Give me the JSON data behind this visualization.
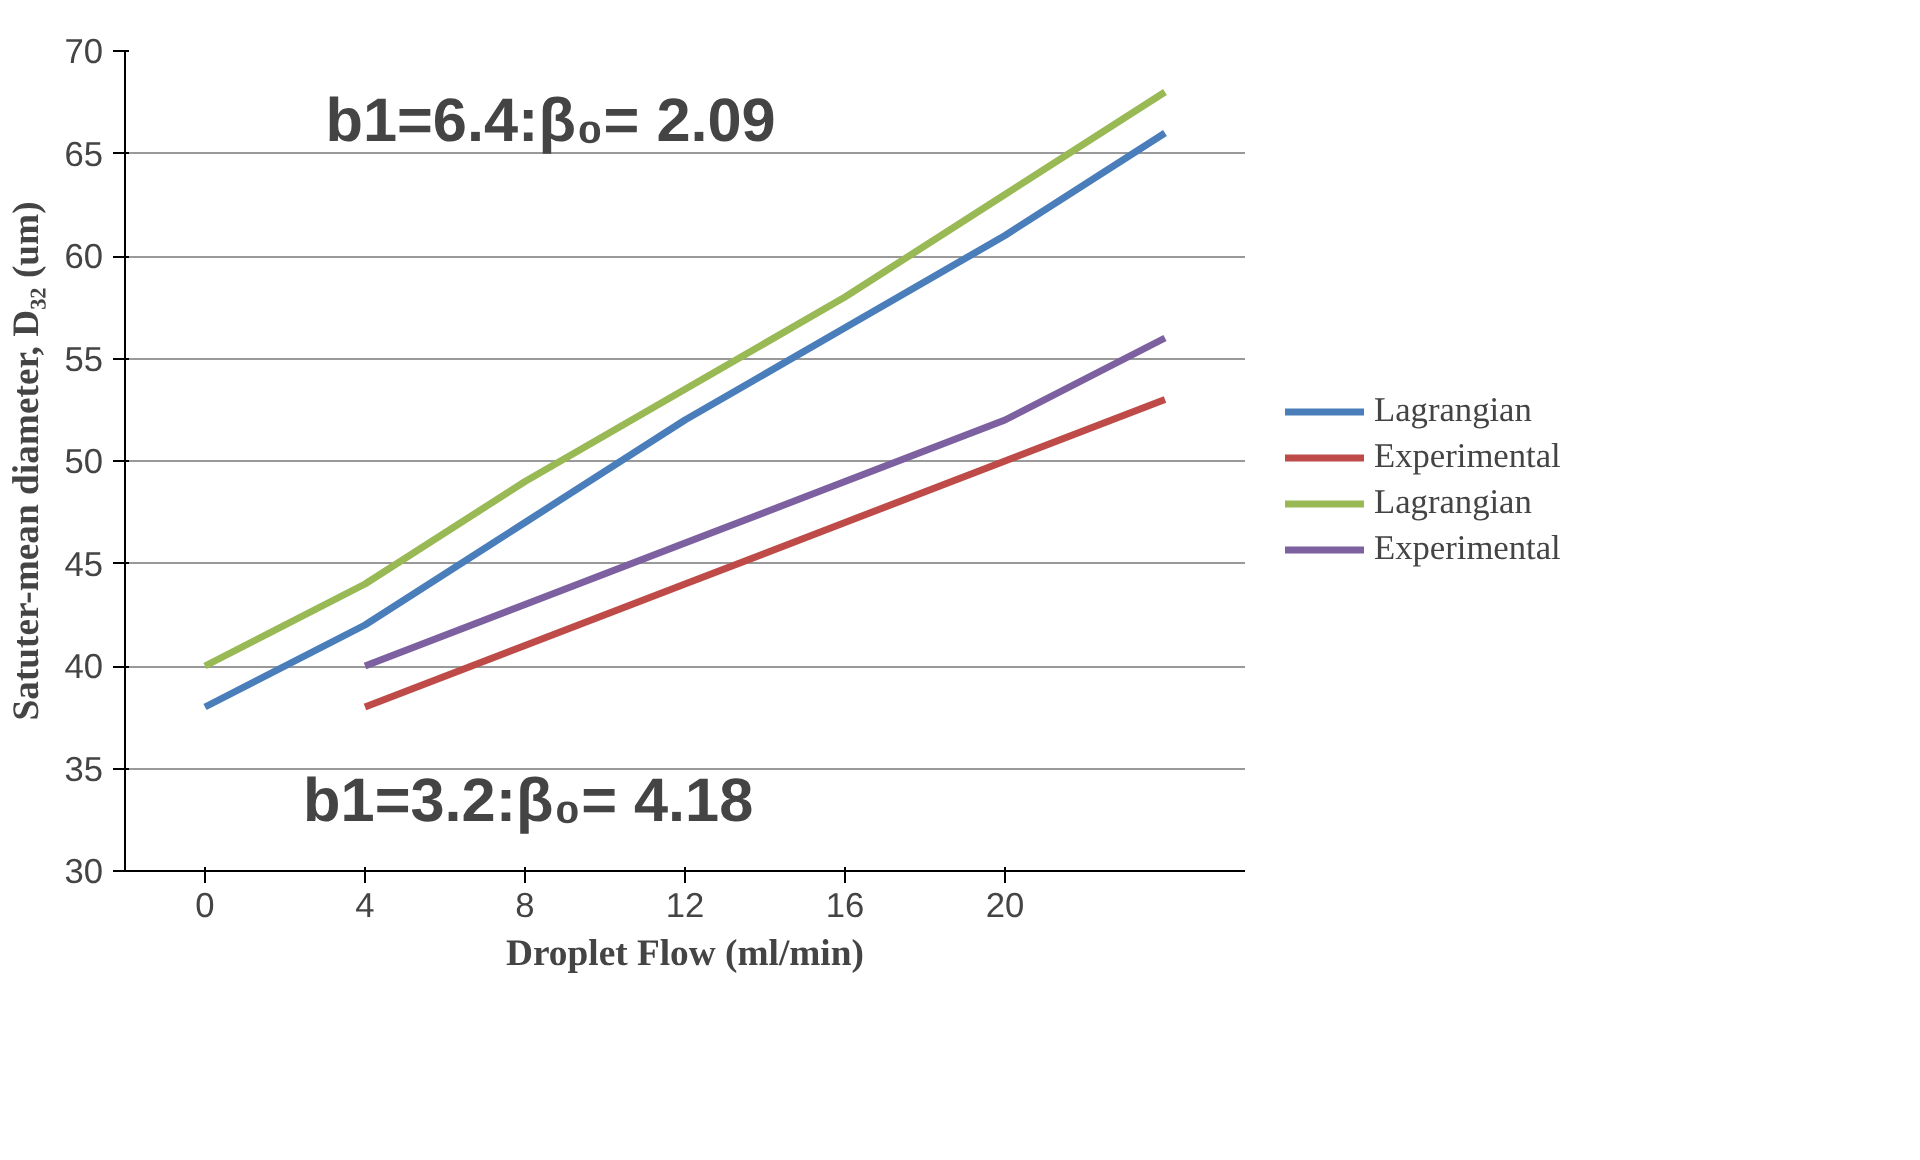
{
  "chart_data": {
    "type": "line",
    "xlabel": "Droplet Flow (ml/min)",
    "ylabel": "Satuter-mean diameter, D₃₂ (um)",
    "xlim": [
      -2,
      26
    ],
    "xticks": [
      0,
      4,
      8,
      12,
      16,
      20
    ],
    "ylim": [
      30,
      70
    ],
    "yticks": [
      30,
      35,
      40,
      45,
      50,
      55,
      60,
      65,
      70
    ],
    "grid": "y",
    "legend": "right",
    "line_style": "solid",
    "series": [
      {
        "name": "Lagrangian",
        "color": "#4a7ebb",
        "x": [
          0,
          4,
          8,
          12,
          16,
          20,
          24
        ],
        "values": [
          38,
          42,
          47,
          52,
          56.5,
          61,
          66
        ]
      },
      {
        "name": "Experimental",
        "color": "#be4b48",
        "x": [
          4,
          8,
          12,
          16,
          20,
          24
        ],
        "values": [
          38,
          41,
          44,
          47,
          50,
          53
        ]
      },
      {
        "name": "Lagrangian",
        "color": "#98b954",
        "x": [
          0,
          4,
          8,
          12,
          16,
          20,
          24
        ],
        "values": [
          40,
          44,
          49,
          53.5,
          58,
          63,
          68
        ]
      },
      {
        "name": "Experimental",
        "color": "#7d60a0",
        "x": [
          4,
          8,
          12,
          16,
          20,
          24
        ],
        "values": [
          40,
          43,
          46,
          49,
          52,
          56
        ]
      }
    ],
    "annotations": [
      "b1=6.4:β₀= 2.09",
      "b1=3.2:β₀= 4.18"
    ]
  }
}
